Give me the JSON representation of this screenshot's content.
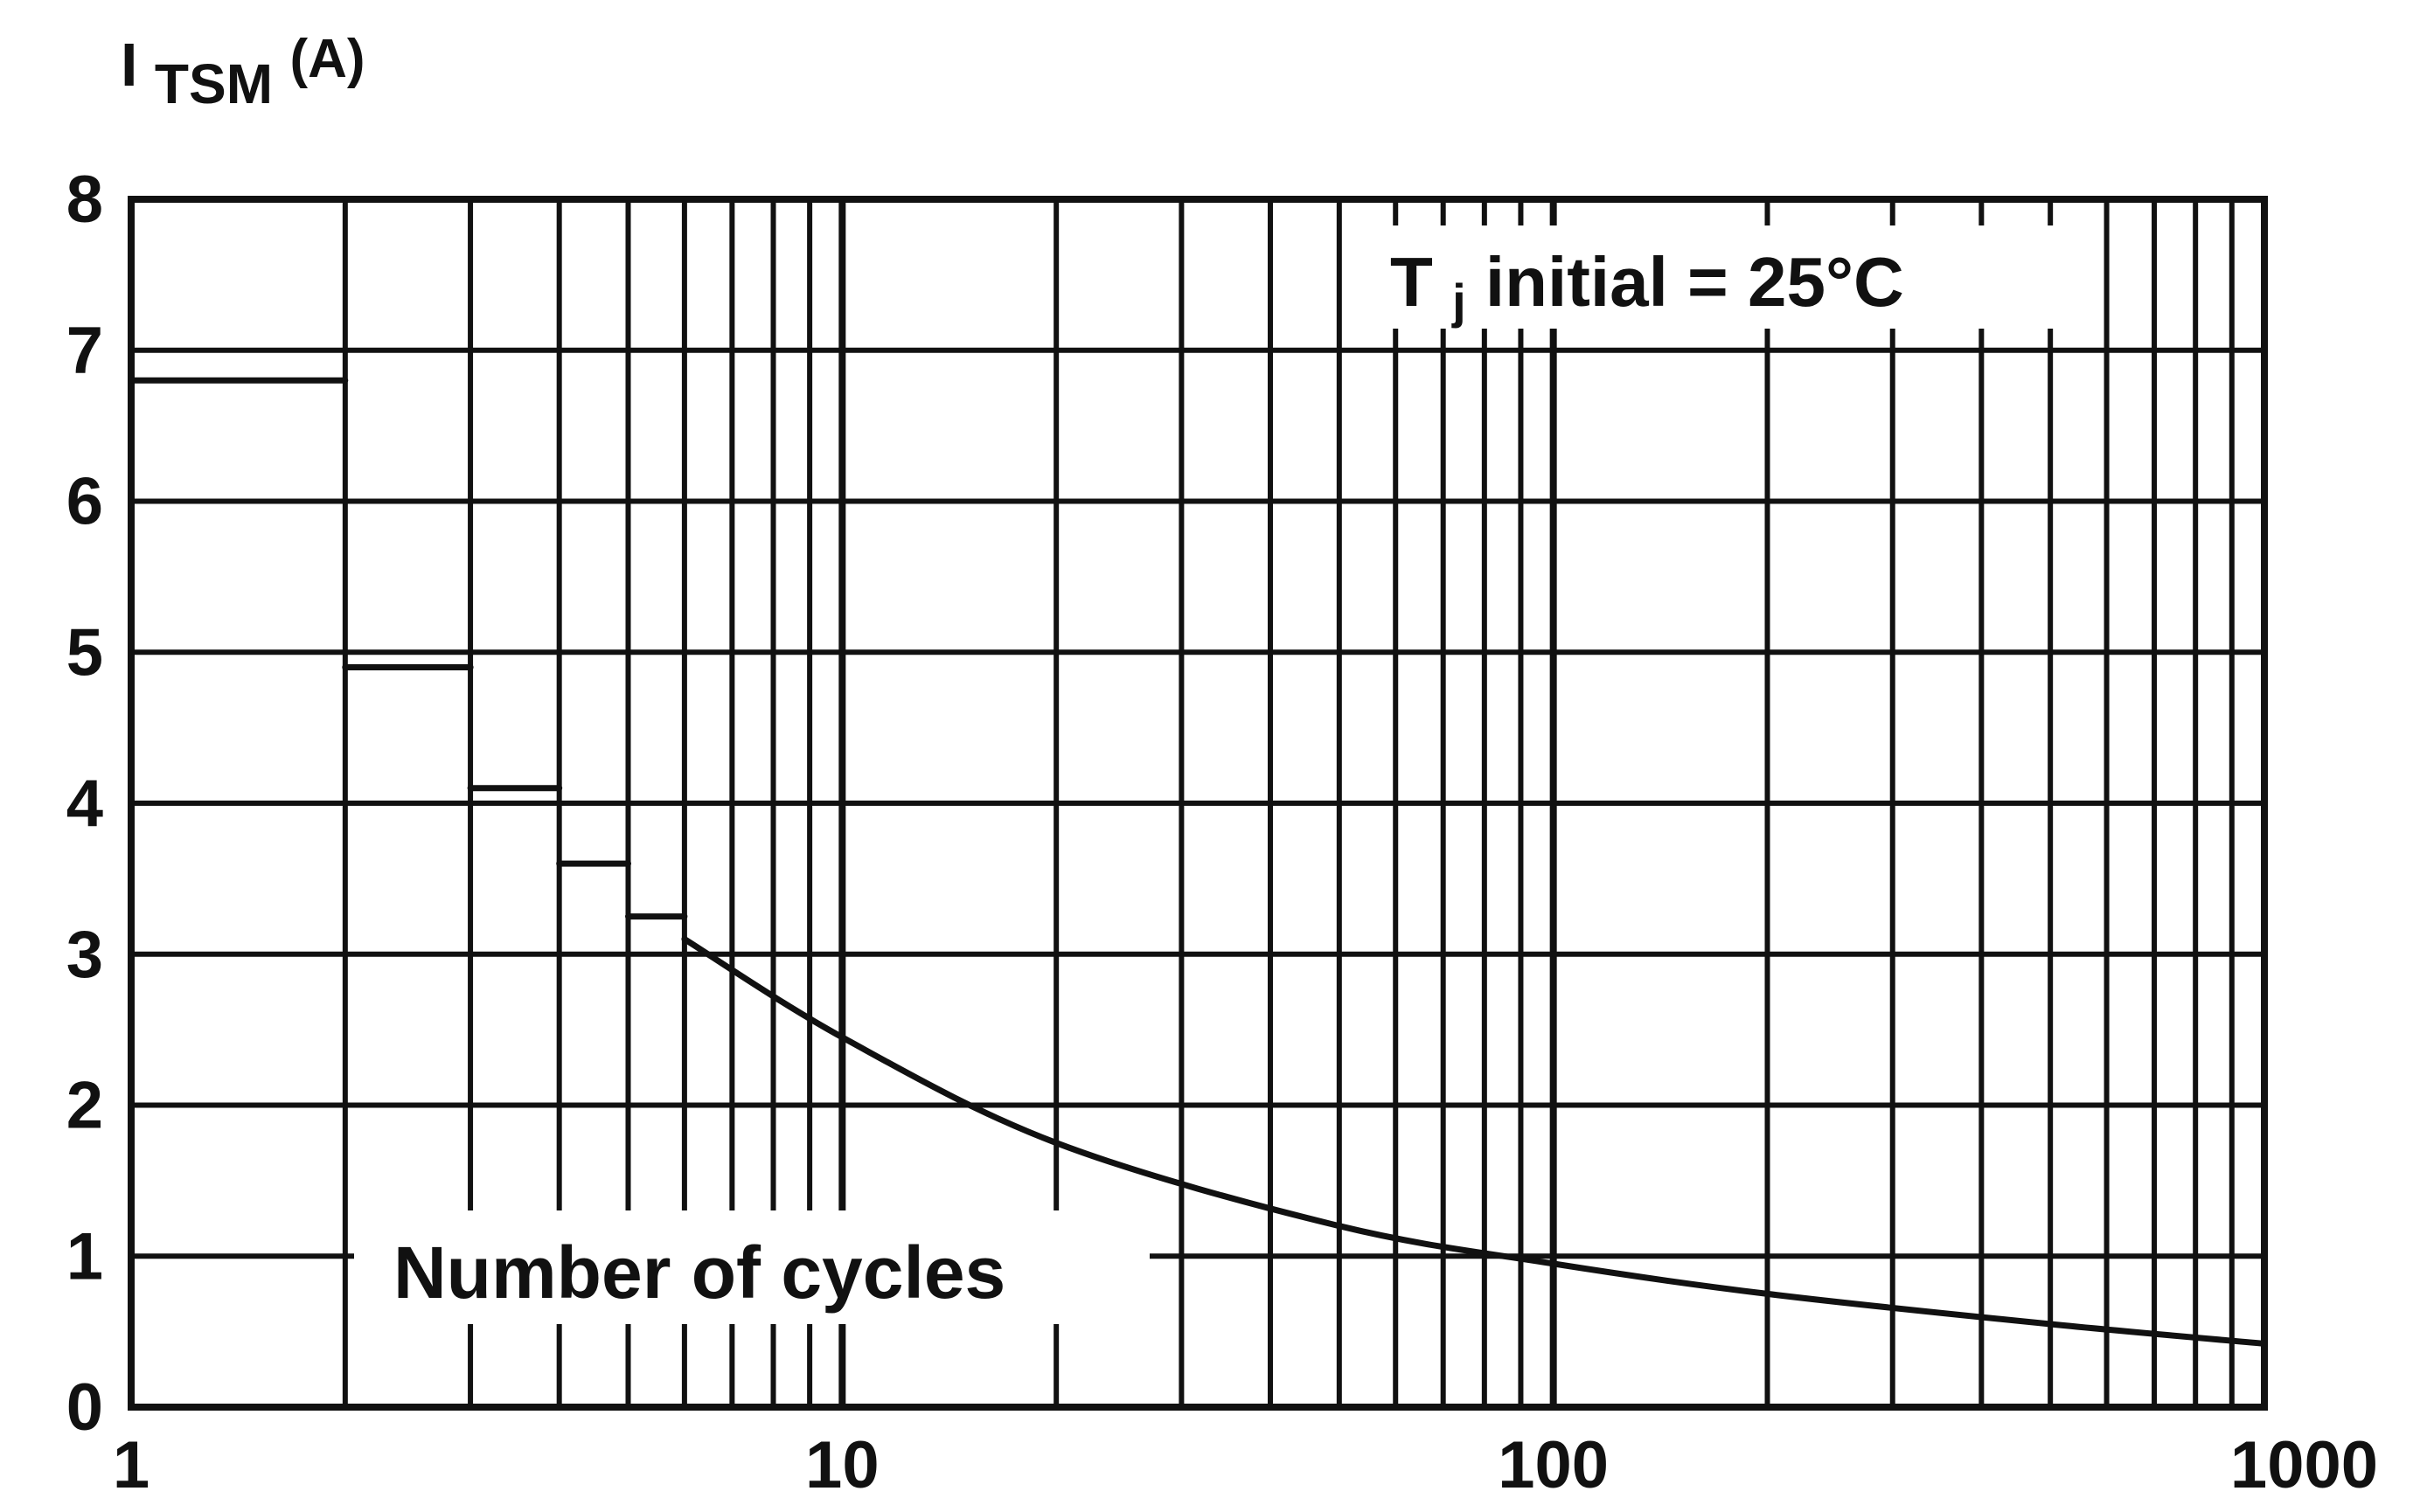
{
  "chart_data": {
    "type": "line",
    "title": "",
    "ylabel": {
      "main": "I",
      "subscript": "TSM",
      "unit": "(A)"
    },
    "xlabel": "Number of cycles",
    "annotation": {
      "prefix": "T",
      "subscript": "j",
      "text": " initial = 25°C"
    },
    "x_scale": "log",
    "xlim": [
      1,
      1000
    ],
    "ylim": [
      0,
      8
    ],
    "x_ticks": [
      1,
      10,
      100,
      1000
    ],
    "x_tick_labels": [
      "1",
      "10",
      "100",
      "1000"
    ],
    "y_ticks": [
      0,
      1,
      2,
      3,
      4,
      5,
      6,
      7,
      8
    ],
    "y_tick_labels": [
      "0",
      "1",
      "2",
      "3",
      "4",
      "5",
      "6",
      "7",
      "8"
    ],
    "grid": true,
    "series": [
      {
        "style": "step",
        "x": [
          1,
          2,
          2,
          3,
          3,
          4,
          4,
          5,
          5,
          6
        ],
        "y": [
          6.8,
          6.8,
          4.9,
          4.9,
          4.1,
          4.1,
          3.6,
          3.6,
          3.25,
          3.25
        ]
      },
      {
        "style": "curve",
        "x": [
          6,
          10,
          20,
          50,
          100,
          200,
          500,
          1000
        ],
        "y": [
          3.1,
          2.45,
          1.75,
          1.2,
          0.95,
          0.75,
          0.55,
          0.42
        ]
      }
    ]
  },
  "colors": {
    "ink": "#111111",
    "background": "#ffffff"
  }
}
